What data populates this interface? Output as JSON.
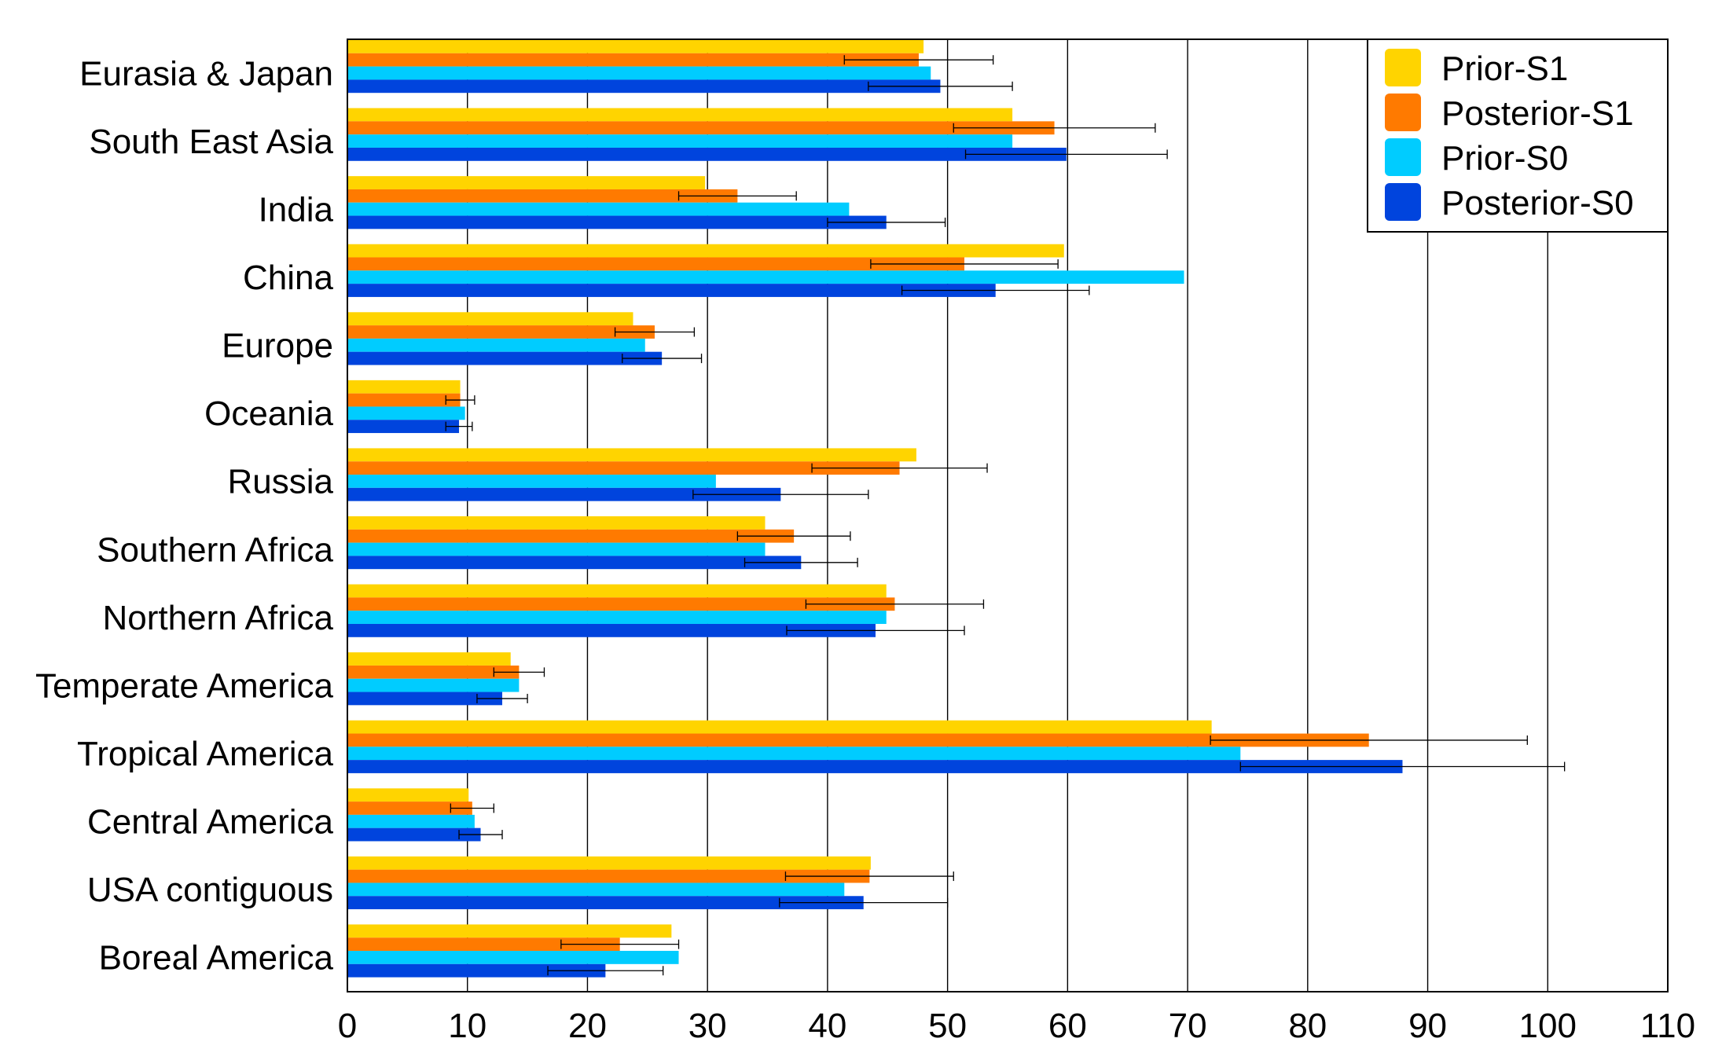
{
  "chart_data": {
    "type": "bar",
    "orientation": "horizontal",
    "title": "",
    "xlabel": "",
    "ylabel": "",
    "xlim": [
      0,
      110
    ],
    "xticks": [
      "0",
      "10",
      "20",
      "30",
      "40",
      "50",
      "60",
      "70",
      "80",
      "90",
      "100",
      "110"
    ],
    "grid": "vertical",
    "legend_position": "top-right",
    "categories": [
      "Eurasia & Japan",
      "South East Asia",
      "India",
      "China",
      "Europe",
      "Oceania",
      "Russia",
      "Southern Africa",
      "Northern Africa",
      "Temperate America",
      "Tropical  America",
      "Central America",
      "USA contiguous",
      "Boreal America"
    ],
    "series": [
      {
        "name": "Prior-S1",
        "color": "#FFD400",
        "values": [
          48,
          55.4,
          29.8,
          59.7,
          23.8,
          9.4,
          47.4,
          34.8,
          44.9,
          13.6,
          72,
          10.1,
          43.6,
          27
        ],
        "errors": null
      },
      {
        "name": "Posterior-S1",
        "color": "#FF7A00",
        "values": [
          47.6,
          58.9,
          32.5,
          51.4,
          25.6,
          9.4,
          46,
          37.2,
          45.6,
          14.3,
          85.1,
          10.4,
          43.5,
          22.7
        ],
        "errors": [
          6.2,
          8.4,
          4.9,
          7.8,
          3.3,
          1.2,
          7.3,
          4.7,
          7.4,
          2.1,
          13.2,
          1.8,
          7,
          4.9
        ]
      },
      {
        "name": "Prior-S0",
        "color": "#00CCFF",
        "values": [
          48.6,
          55.4,
          41.8,
          69.7,
          24.8,
          9.8,
          30.7,
          34.8,
          44.9,
          14.3,
          74.4,
          10.6,
          41.4,
          27.6
        ],
        "errors": null
      },
      {
        "name": "Posterior-S0",
        "color": "#0044DD",
        "values": [
          49.4,
          59.9,
          44.9,
          54,
          26.2,
          9.3,
          36.1,
          37.8,
          44,
          12.9,
          87.9,
          11.1,
          43,
          21.5
        ],
        "errors": [
          6,
          8.4,
          4.9,
          7.8,
          3.3,
          1.1,
          7.3,
          4.7,
          7.4,
          2.1,
          13.5,
          1.8,
          7,
          4.8
        ]
      }
    ]
  }
}
